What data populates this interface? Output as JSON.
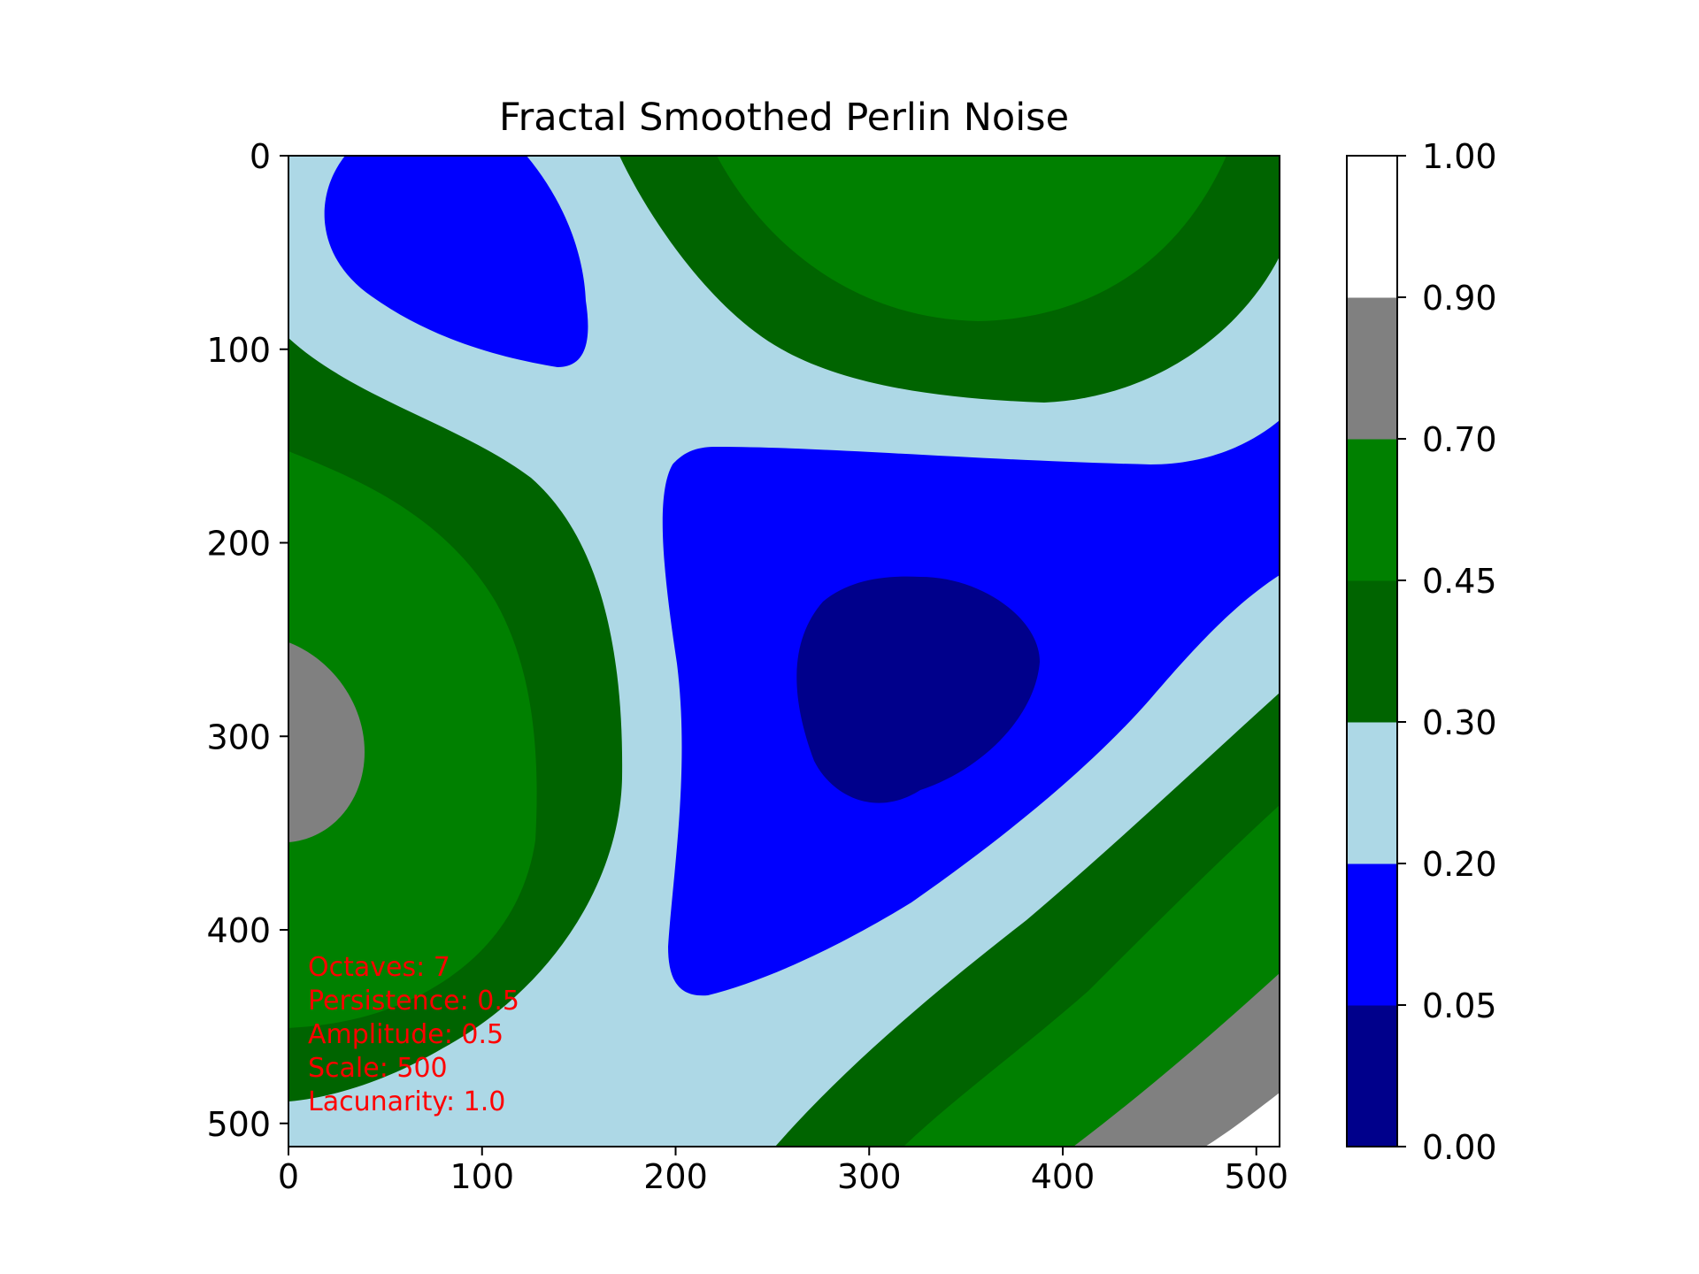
{
  "chart_data": {
    "type": "heatmap",
    "title": "Fractal Smoothed Perlin Noise",
    "xlabel": "",
    "ylabel": "",
    "xlim": [
      0,
      511
    ],
    "ylim": [
      511,
      0
    ],
    "x_ticks": [
      0,
      100,
      200,
      300,
      400,
      500
    ],
    "y_ticks": [
      0,
      100,
      200,
      300,
      400,
      500
    ],
    "grid": false,
    "colorbar": {
      "boundaries": [
        0.0,
        0.05,
        0.2,
        0.3,
        0.45,
        0.7,
        0.9,
        1.0
      ],
      "tick_labels": [
        "0.00",
        "0.05",
        "0.20",
        "0.30",
        "0.45",
        "0.70",
        "0.90",
        "1.00"
      ],
      "colors": [
        "#00008b",
        "#0000ff",
        "#add8e6",
        "#006400",
        "#008000",
        "#808080",
        "#ffffff"
      ]
    },
    "annotation": {
      "color": "#ff0000",
      "lines": [
        "Octaves: 7",
        "Persistence: 0.5",
        "Amplitude: 0.5",
        "Scale: 500",
        "Lacunarity: 1.0"
      ]
    }
  }
}
